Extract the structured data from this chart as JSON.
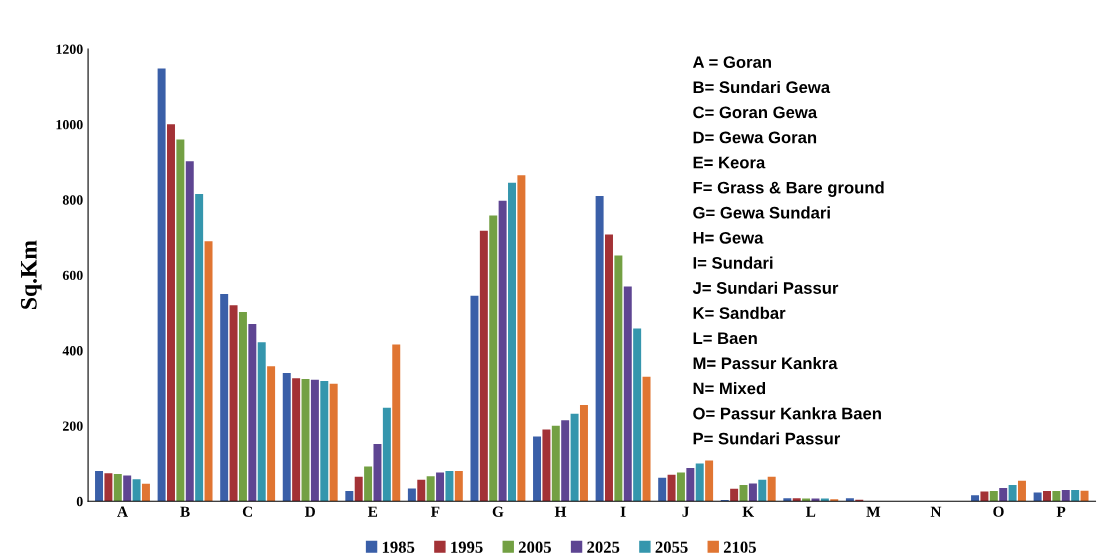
{
  "chart_data": {
    "type": "bar",
    "ylabel": "Sq.Km",
    "categories": [
      "A",
      "B",
      "C",
      "D",
      "E",
      "F",
      "G",
      "H",
      "I",
      "J",
      "K",
      "L",
      "M",
      "N",
      "O",
      "P"
    ],
    "series": [
      {
        "name": "1985",
        "color": "#3a5fa8",
        "values": [
          80,
          1148,
          550,
          340,
          27,
          34,
          545,
          172,
          810,
          62,
          3,
          8,
          8,
          0,
          16,
          23
        ]
      },
      {
        "name": "1995",
        "color": "#a33236",
        "values": [
          74,
          1000,
          520,
          326,
          65,
          57,
          718,
          190,
          708,
          70,
          33,
          8,
          4,
          0,
          26,
          27
        ]
      },
      {
        "name": "2005",
        "color": "#73a043",
        "values": [
          72,
          960,
          502,
          324,
          92,
          66,
          758,
          200,
          652,
          76,
          43,
          7,
          0,
          0,
          27,
          27
        ]
      },
      {
        "name": "2025",
        "color": "#5e4592",
        "values": [
          68,
          902,
          470,
          322,
          152,
          76,
          797,
          215,
          570,
          88,
          47,
          7,
          0,
          0,
          35,
          30
        ]
      },
      {
        "name": "2055",
        "color": "#3596ad",
        "values": [
          58,
          815,
          422,
          319,
          248,
          80,
          845,
          232,
          458,
          100,
          57,
          7,
          0,
          0,
          43,
          30
        ]
      },
      {
        "name": "2105",
        "color": "#e07532",
        "values": [
          46,
          690,
          358,
          312,
          416,
          80,
          865,
          255,
          330,
          108,
          65,
          5,
          0,
          0,
          54,
          28
        ]
      }
    ],
    "ylim": [
      0,
      1200
    ],
    "yticks": [
      0,
      200,
      400,
      600,
      800,
      1000,
      1200
    ],
    "grid": false,
    "legend": "bottom",
    "annotations": [
      "A = Goran",
      "B= Sundari Gewa",
      "C= Goran Gewa",
      "D= Gewa Goran",
      "E= Keora",
      "F= Grass & Bare ground",
      "G= Gewa Sundari",
      "H= Gewa",
      "I= Sundari",
      "J= Sundari Passur",
      "K= Sandbar",
      "L= Baen",
      "M= Passur Kankra",
      "N= Mixed",
      "O= Passur Kankra Baen",
      "P= Sundari Passur"
    ]
  }
}
